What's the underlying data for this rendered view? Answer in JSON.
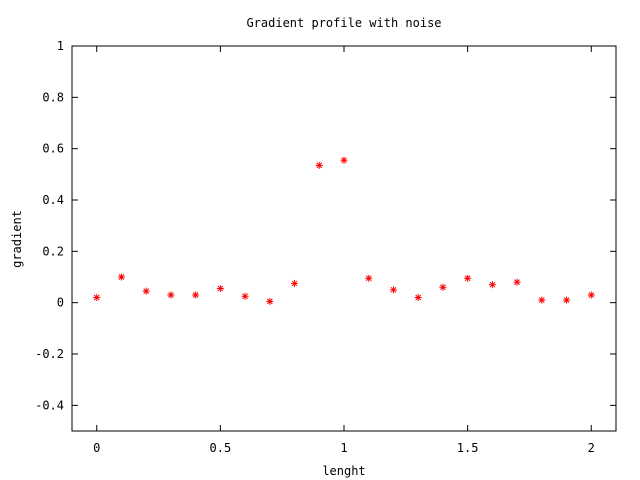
{
  "chart_data": {
    "type": "scatter",
    "title": "Gradient profile with noise",
    "xlabel": "lenght",
    "ylabel": "gradient",
    "xlim": [
      -0.1,
      2.1
    ],
    "ylim": [
      -0.5,
      1.0
    ],
    "xticks": [
      0,
      0.5,
      1,
      1.5,
      2
    ],
    "xtick_labels": [
      "0",
      "0.5",
      "1",
      "1.5",
      "2"
    ],
    "yticks": [
      -0.4,
      -0.2,
      0,
      0.2,
      0.4,
      0.6,
      0.8,
      1
    ],
    "ytick_labels": [
      "-0.4",
      "-0.2",
      "0",
      "0.2",
      "0.4",
      "0.6",
      "0.8",
      "1"
    ],
    "grid": false,
    "legend": "none",
    "marker": "asterisk",
    "color": "#ff0000",
    "x": [
      0,
      0.1,
      0.2,
      0.3,
      0.4,
      0.5,
      0.6,
      0.7,
      0.8,
      0.9,
      1.0,
      1.1,
      1.2,
      1.3,
      1.4,
      1.5,
      1.6,
      1.7,
      1.8,
      1.9,
      2.0
    ],
    "y": [
      0.02,
      0.1,
      0.045,
      0.03,
      0.03,
      0.055,
      0.025,
      0.005,
      0.075,
      0.535,
      0.555,
      0.095,
      0.05,
      0.02,
      0.06,
      0.095,
      0.07,
      0.08,
      0.01,
      0.01,
      0.03
    ]
  }
}
